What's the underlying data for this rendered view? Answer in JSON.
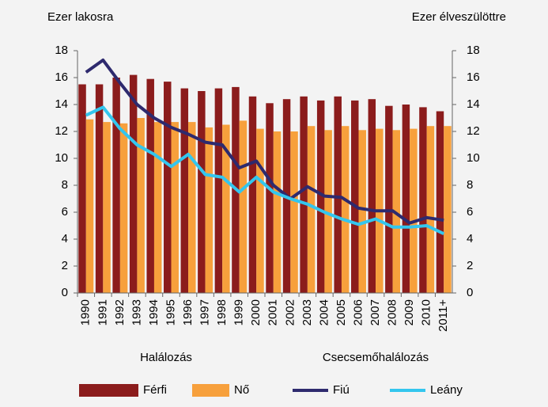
{
  "chart_data": {
    "type": "bar-line",
    "y_label": "Ezer lakosra",
    "y2_label": "Ezer élveszülöttre",
    "annotations": [
      "Halálozás",
      "Csecsemőhalálozás"
    ],
    "categories": [
      "1990",
      "1991",
      "1992",
      "1993",
      "1994",
      "1995",
      "1996",
      "1997",
      "1998",
      "1999",
      "2000",
      "2001",
      "2002",
      "2003",
      "2004",
      "2005",
      "2006",
      "2007",
      "2008",
      "2009",
      "2010",
      "2011+"
    ],
    "series": [
      {
        "name": "Férfi",
        "type": "bar",
        "color": "#8b1c1c",
        "values": [
          15.5,
          15.5,
          16.0,
          16.2,
          15.9,
          15.7,
          15.2,
          15.0,
          15.2,
          15.3,
          14.6,
          14.1,
          14.4,
          14.6,
          14.3,
          14.6,
          14.3,
          14.4,
          13.9,
          14.0,
          13.8,
          13.5
        ]
      },
      {
        "name": "Nő",
        "type": "bar",
        "color": "#f7a03c",
        "values": [
          12.9,
          12.7,
          12.6,
          13.0,
          12.7,
          12.7,
          12.7,
          12.3,
          12.5,
          12.8,
          12.2,
          12.0,
          12.0,
          12.4,
          12.1,
          12.4,
          12.1,
          12.2,
          12.1,
          12.2,
          12.4,
          12.4
        ]
      },
      {
        "name": "Fiú",
        "type": "line",
        "axis": "y2",
        "color": "#2e2a6e",
        "values": [
          16.4,
          17.3,
          15.6,
          14.0,
          13.0,
          12.3,
          11.8,
          11.2,
          11.0,
          9.3,
          9.8,
          8.0,
          7.0,
          7.9,
          7.2,
          7.1,
          6.3,
          6.1,
          6.1,
          5.2,
          5.6,
          5.4
        ]
      },
      {
        "name": "Leány",
        "type": "line",
        "axis": "y2",
        "color": "#33c6ee",
        "values": [
          13.2,
          13.8,
          12.2,
          11.0,
          10.3,
          9.4,
          10.3,
          8.8,
          8.6,
          7.5,
          8.6,
          7.5,
          7.0,
          6.6,
          6.0,
          5.5,
          5.1,
          5.5,
          4.9,
          4.9,
          5.0,
          4.4
        ]
      }
    ],
    "ylim": [
      0,
      18
    ],
    "yticks": [
      0,
      2,
      4,
      6,
      8,
      10,
      12,
      14,
      16,
      18
    ],
    "y2lim": [
      0,
      18
    ],
    "y2ticks": [
      0,
      2,
      4,
      6,
      8,
      10,
      12,
      14,
      16,
      18
    ],
    "legend": "bottom"
  }
}
